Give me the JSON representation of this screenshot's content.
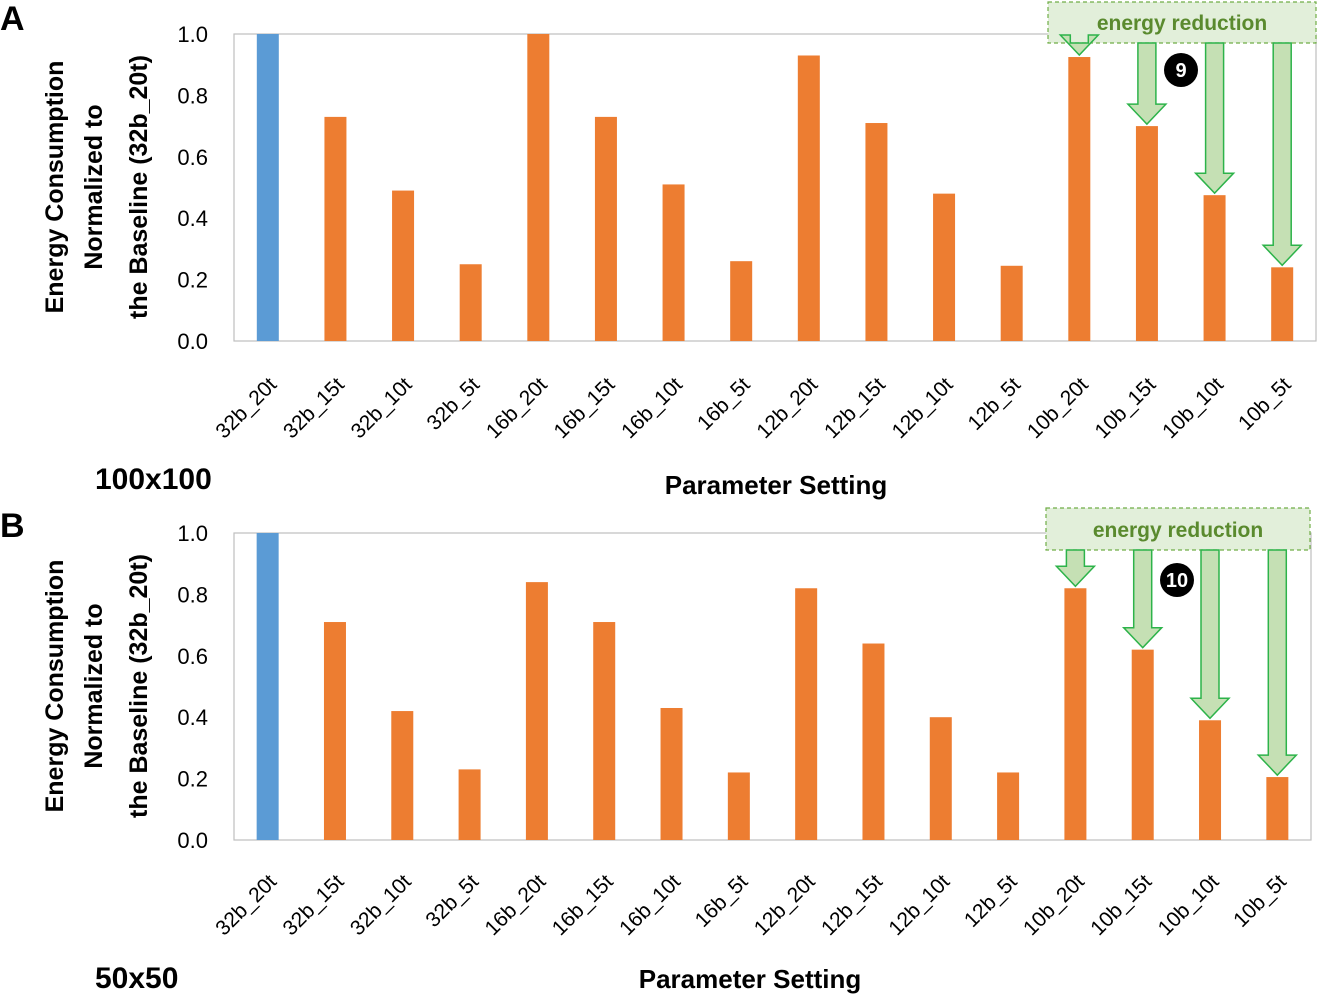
{
  "colors": {
    "baseline": "#5b9bd5",
    "other": "#ed7d31",
    "arrow_fill": "#c5e0b4",
    "arrow_stroke": "#2db34a",
    "annotation_fill": "#e2efda",
    "annotation_text": "#5a8a2e"
  },
  "chart_data": [
    {
      "type": "bar",
      "panel_letter": "A",
      "size_label": "100x100",
      "title": "",
      "xlabel": "Parameter Setting",
      "ylabel_lines": [
        "Energy Consumption",
        "Normalized to",
        "the Baseline (32b_20t)"
      ],
      "ylim": [
        0,
        1.0
      ],
      "yticks": [
        "0.0",
        "0.2",
        "0.4",
        "0.6",
        "0.8",
        "1.0"
      ],
      "categories": [
        "32b_20t",
        "32b_15t",
        "32b_10t",
        "32b_5t",
        "16b_20t",
        "16b_15t",
        "16b_10t",
        "16b_5t",
        "12b_20t",
        "12b_15t",
        "12b_10t",
        "12b_5t",
        "10b_20t",
        "10b_15t",
        "10b_10t",
        "10b_5t"
      ],
      "values": [
        1.0,
        0.73,
        0.49,
        0.25,
        1.0,
        0.73,
        0.51,
        0.26,
        0.93,
        0.71,
        0.48,
        0.245,
        0.925,
        0.7,
        0.475,
        0.24
      ],
      "baseline_index": 0,
      "annotation": {
        "text": "energy reduction",
        "step": "9",
        "arrow_indices": [
          12,
          13,
          14,
          15
        ]
      }
    },
    {
      "type": "bar",
      "panel_letter": "B",
      "size_label": "50x50",
      "title": "",
      "xlabel": "Parameter Setting",
      "ylabel_lines": [
        "Energy Consumption",
        "Normalized to",
        "the Baseline (32b_20t)"
      ],
      "ylim": [
        0,
        1.0
      ],
      "yticks": [
        "0.0",
        "0.2",
        "0.4",
        "0.6",
        "0.8",
        "1.0"
      ],
      "categories": [
        "32b_20t",
        "32b_15t",
        "32b_10t",
        "32b_5t",
        "16b_20t",
        "16b_15t",
        "16b_10t",
        "16b_5t",
        "12b_20t",
        "12b_15t",
        "12b_10t",
        "12b_5t",
        "10b_20t",
        "10b_15t",
        "10b_10t",
        "10b_5t"
      ],
      "values": [
        1.0,
        0.71,
        0.42,
        0.23,
        0.84,
        0.71,
        0.43,
        0.22,
        0.82,
        0.64,
        0.4,
        0.22,
        0.82,
        0.62,
        0.39,
        0.205
      ],
      "baseline_index": 0,
      "annotation": {
        "text": "energy reduction",
        "step": "10",
        "arrow_indices": [
          12,
          13,
          14,
          15
        ]
      }
    }
  ]
}
